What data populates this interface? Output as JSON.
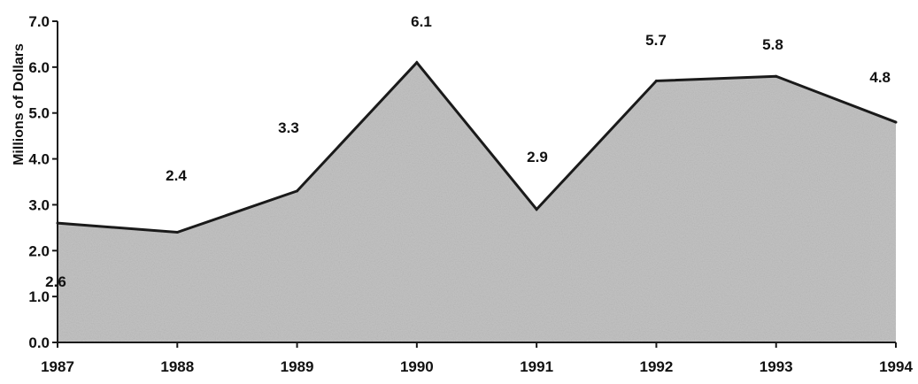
{
  "chart_data": {
    "type": "area",
    "title": "",
    "xlabel": "",
    "ylabel": "Millions of Dollars",
    "categories": [
      "1987",
      "1988",
      "1989",
      "1990",
      "1991",
      "1992",
      "1993",
      "1994"
    ],
    "values": [
      2.6,
      2.4,
      3.3,
      6.1,
      2.9,
      5.7,
      5.8,
      4.8
    ],
    "data_labels": [
      "2.6",
      "2.4",
      "3.3",
      "6.1",
      "2.9",
      "5.7",
      "5.8",
      "4.8"
    ],
    "ylim": [
      0,
      7
    ],
    "yticks": [
      "0.0",
      "1.0",
      "2.0",
      "3.0",
      "4.0",
      "5.0",
      "6.0",
      "7.0"
    ],
    "grid": false,
    "legend": "none",
    "colors": {
      "fill": "#c4c4c4",
      "line": "#1a1a1a",
      "axis": "#1a1a1a",
      "text": "#111111"
    }
  }
}
